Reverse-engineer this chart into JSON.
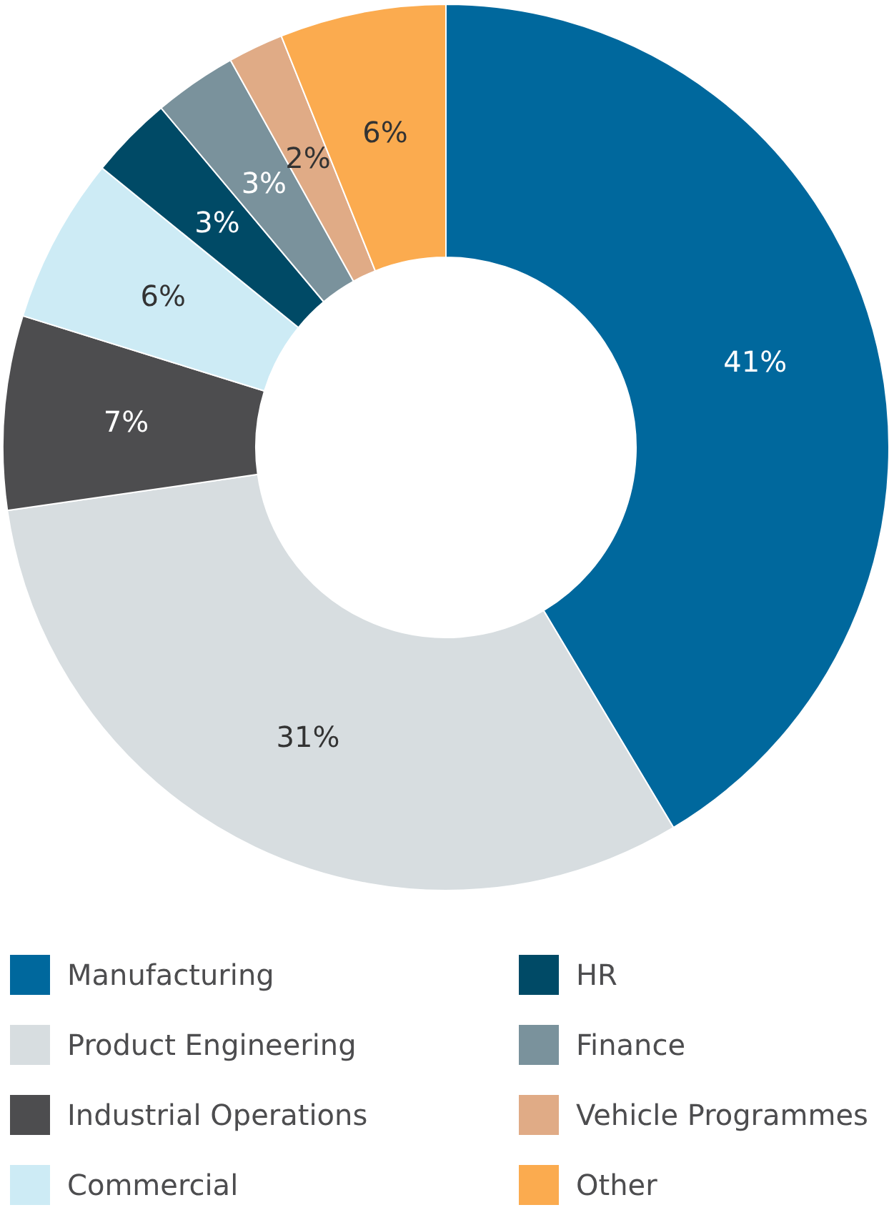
{
  "chart_data": {
    "type": "donut",
    "categories": [
      "Manufacturing",
      "Product Engineering",
      "Industrial Operations",
      "Commercial",
      "HR",
      "Finance",
      "Vehicle Programmes",
      "Other"
    ],
    "values": [
      41,
      31,
      7,
      6,
      3,
      3,
      2,
      6
    ],
    "colors": [
      "#00689d",
      "#d7dde0",
      "#4d4d4f",
      "#cdebf5",
      "#004a66",
      "#7a929c",
      "#e0ab86",
      "#fbab4f"
    ],
    "value_labels": [
      "41%",
      "31%",
      "7%",
      "6%",
      "3%",
      "3%",
      "2%",
      "6%"
    ],
    "legend": "bottom"
  }
}
